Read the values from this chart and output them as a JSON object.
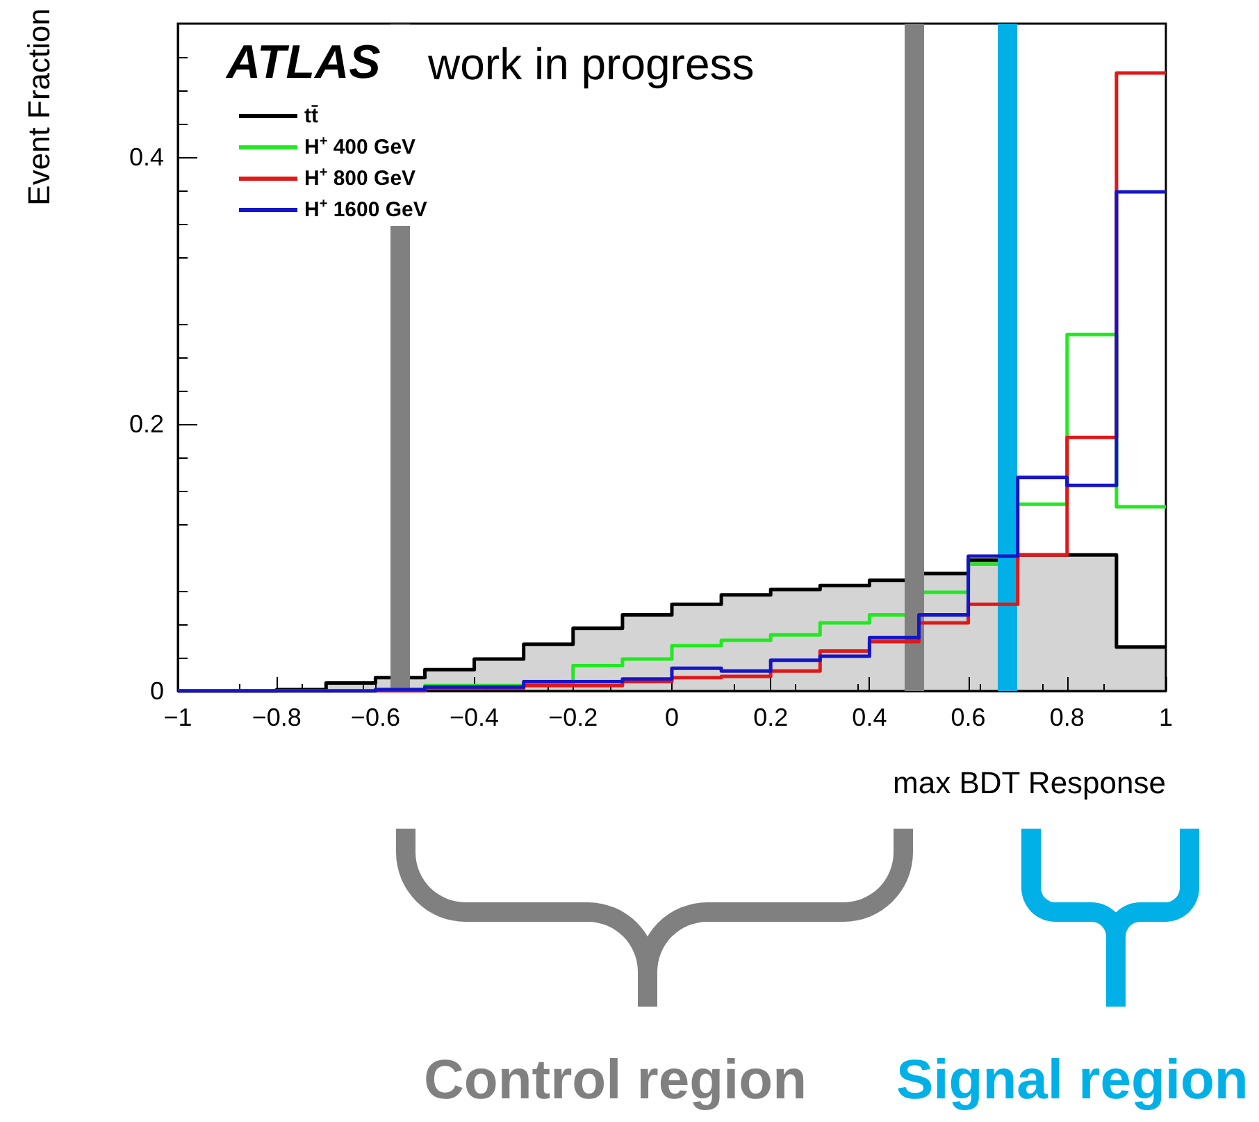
{
  "chart_data": {
    "type": "histogram",
    "annotations": [
      "ATLAS",
      "work in progress",
      "Control region",
      "Signal region"
    ],
    "xlabel": "max BDT Response",
    "ylabel": "Event Fraction",
    "bins": [
      -1,
      -0.9,
      -0.8,
      -0.7,
      -0.6,
      -0.5,
      -0.4,
      -0.3,
      -0.2,
      -0.1,
      0,
      0.1,
      0.2,
      0.3,
      0.4,
      0.5,
      0.6,
      0.7,
      0.8,
      0.9,
      1
    ],
    "series": [
      {
        "name": "tt̄",
        "color": "#000000",
        "values": [
          0,
          0,
          0.001,
          0.006,
          0.01,
          0.016,
          0.024,
          0.035,
          0.047,
          0.057,
          0.065,
          0.072,
          0.076,
          0.079,
          0.083,
          0.088,
          0.098,
          0.102,
          0.102,
          0.033
        ]
      },
      {
        "name": "H$^{+}$ 400 GeV",
        "color": "#22e822",
        "values": [
          0,
          0,
          0,
          0,
          0.001,
          0.004,
          0.004,
          0.005,
          0.019,
          0.024,
          0.034,
          0.038,
          0.042,
          0.051,
          0.057,
          0.074,
          0.095,
          0.14,
          0.267,
          0.138
        ]
      },
      {
        "name": "H$^{+}$ 800 GeV",
        "color": "#e01818",
        "values": [
          0,
          0,
          0,
          0,
          0,
          0.002,
          0.002,
          0.004,
          0.004,
          0.007,
          0.01,
          0.011,
          0.015,
          0.03,
          0.037,
          0.051,
          0.065,
          0.102,
          0.19,
          0.463
        ]
      },
      {
        "name": "H$^{+}$ 1600 GeV",
        "color": "#1515c8",
        "values": [
          0,
          0,
          0,
          0,
          0.001,
          0.003,
          0.003,
          0.007,
          0.007,
          0.009,
          0.017,
          0.015,
          0.023,
          0.026,
          0.04,
          0.057,
          0.101,
          0.16,
          0.154,
          0.374
        ]
      }
    ],
    "xlim": [
      -1,
      1
    ],
    "xticks": [
      -1,
      -0.8,
      -0.6,
      -0.4,
      -0.2,
      0,
      0.2,
      0.4,
      0.6,
      0.8,
      1
    ],
    "ylim": [
      0,
      0.5
    ],
    "yticks": [
      0,
      0.2,
      0.4
    ],
    "ref_lines": [
      {
        "axis": "x",
        "value": -0.55,
        "color": "#808080"
      },
      {
        "axis": "x",
        "value": 0.49,
        "color": "#808080"
      },
      {
        "axis": "x",
        "value": 0.68,
        "color": "#00b0e6"
      }
    ],
    "legend": "top left",
    "grid": false
  }
}
